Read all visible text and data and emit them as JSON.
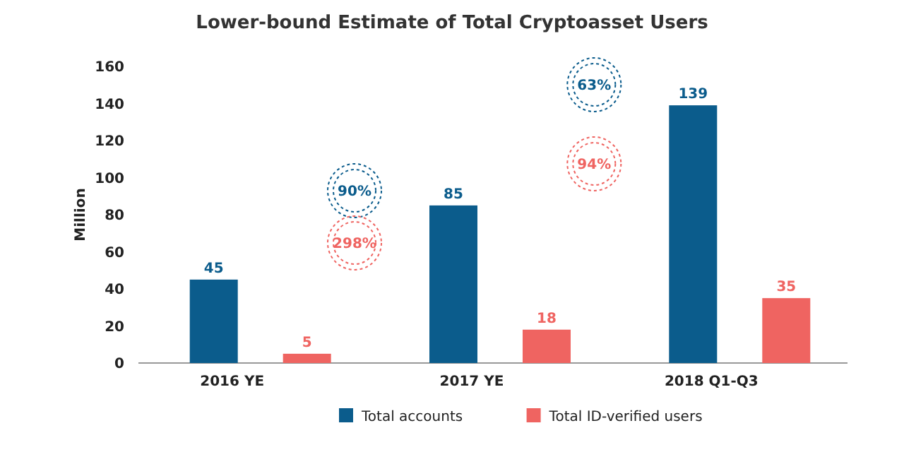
{
  "chart_data": {
    "type": "bar",
    "title": "Lower-bound Estimate of Total Cryptoasset Users",
    "ylabel": "Million",
    "categories": [
      "2016 YE",
      "2017 YE",
      "2018 Q1-Q3"
    ],
    "series": [
      {
        "name": "Total accounts",
        "color": "#0b5c8c",
        "values": [
          45,
          85,
          139
        ]
      },
      {
        "name": "Total ID-verified users",
        "color": "#ef6461",
        "values": [
          5,
          18,
          35
        ]
      }
    ],
    "ylim": [
      0,
      160
    ],
    "yticks": [
      0,
      20,
      40,
      60,
      80,
      100,
      120,
      140,
      160
    ],
    "data_labels": true,
    "legend": "bottom",
    "annotations": [
      "90%",
      "298%",
      "63%",
      "94%"
    ]
  }
}
